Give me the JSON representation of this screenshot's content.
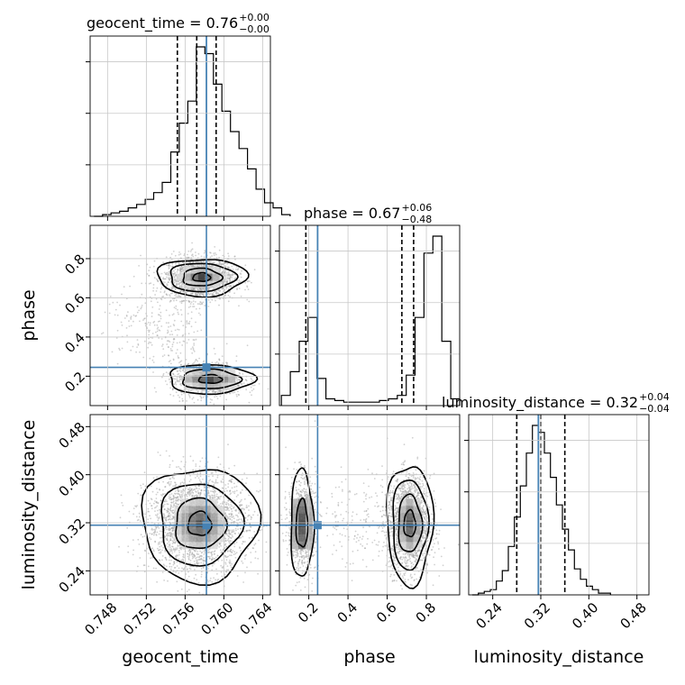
{
  "chart_data": {
    "type": "corner",
    "parameters": [
      "geocent_time",
      "phase",
      "luminosity_distance"
    ],
    "truths": {
      "geocent_time": 0.7582,
      "phase": 0.245,
      "luminosity_distance": 0.316
    },
    "truth_color": "#4682b4",
    "titles": [
      {
        "param": "geocent_time",
        "label": "geocent_time = 0.76",
        "sup": "+0.00",
        "sub": "−0.00"
      },
      {
        "param": "phase",
        "label": "phase = 0.67",
        "sup": "+0.06",
        "sub": "−0.48"
      },
      {
        "param": "luminosity_distance",
        "label": "luminosity_distance = 0.32",
        "sup": "+0.04",
        "sub": "−0.04"
      }
    ],
    "axis_labels": {
      "x": [
        "geocent_time",
        "phase",
        "luminosity_distance"
      ],
      "y": [
        "phase",
        "luminosity_distance"
      ]
    },
    "ranges": {
      "geocent_time": [
        0.7462,
        0.7648
      ],
      "phase": [
        0.05,
        0.97
      ],
      "luminosity_distance": [
        0.2,
        0.5
      ]
    },
    "ticks": {
      "geocent_time": [
        "0.748",
        "0.752",
        "0.756",
        "0.760",
        "0.764"
      ],
      "phase": [
        "0.2",
        "0.4",
        "0.6",
        "0.8"
      ],
      "luminosity_distance": [
        "0.24",
        "0.32",
        "0.40",
        "0.48"
      ]
    },
    "tick_values": {
      "geocent_time": [
        0.748,
        0.752,
        0.756,
        0.76,
        0.764
      ],
      "phase": [
        0.2,
        0.4,
        0.6,
        0.8
      ],
      "luminosity_distance": [
        0.24,
        0.32,
        0.4,
        0.48
      ]
    },
    "quantiles": {
      "geocent_time": [
        0.7552,
        0.7572,
        0.7592
      ],
      "phase": [
        0.185,
        0.675,
        0.735
      ],
      "luminosity_distance": [
        0.28,
        0.32,
        0.36
      ]
    },
    "histograms": {
      "geocent_time": {
        "bin_edges_start": 0.7466,
        "bin_width": 0.00088,
        "counts": [
          0,
          1,
          2,
          3,
          5,
          7,
          10,
          14,
          20,
          38,
          55,
          68,
          100,
          96,
          78,
          62,
          50,
          40,
          28,
          16,
          8,
          5,
          1
        ]
      },
      "phase": {
        "bin_edges_start": 0.06,
        "bin_width": 0.0455,
        "counts": [
          6,
          20,
          38,
          52,
          16,
          4,
          3,
          2,
          2,
          2,
          2,
          3,
          4,
          6,
          18,
          52,
          90,
          100,
          38,
          4
        ]
      },
      "luminosity_distance": {
        "bin_edges_start": 0.206,
        "bin_width": 0.01,
        "counts": [
          0,
          1,
          2,
          3,
          8,
          14,
          28,
          45,
          63,
          82,
          98,
          94,
          82,
          68,
          52,
          38,
          26,
          15,
          9,
          5,
          3,
          1,
          1
        ]
      }
    },
    "grid": true
  }
}
